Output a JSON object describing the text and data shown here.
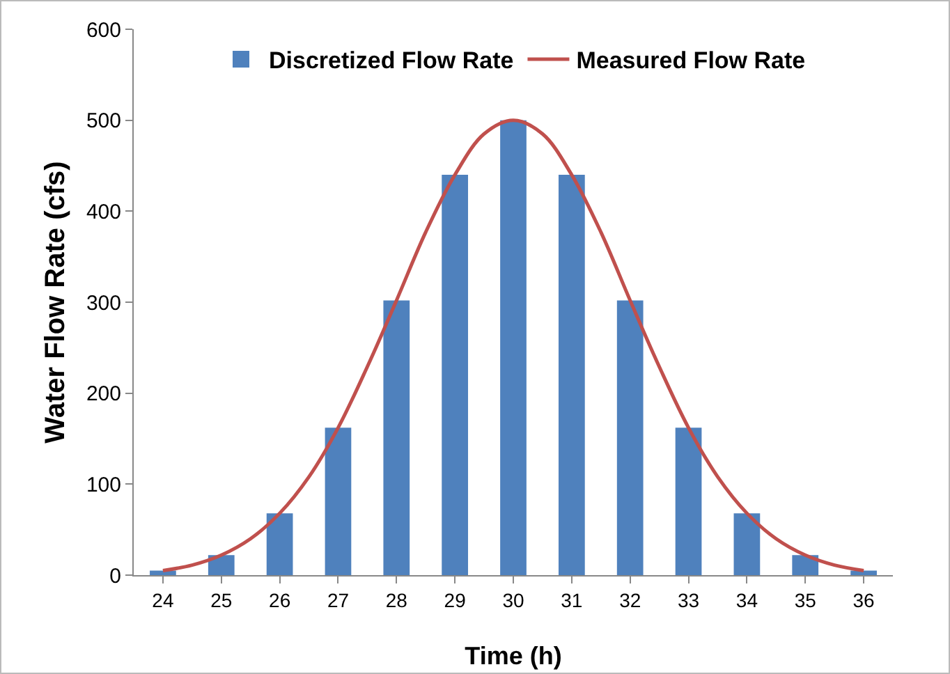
{
  "chart_data": {
    "type": "bar",
    "xlabel": "Time (h)",
    "ylabel": "Water Flow Rate (cfs)",
    "x": [
      24,
      25,
      26,
      27,
      28,
      29,
      30,
      31,
      32,
      33,
      34,
      35,
      36
    ],
    "xlim": [
      23.5,
      36.5
    ],
    "xticks": [
      24,
      25,
      26,
      27,
      28,
      29,
      30,
      31,
      32,
      33,
      34,
      35,
      36
    ],
    "ylim": [
      0,
      600
    ],
    "yticks": [
      0,
      100,
      200,
      300,
      400,
      500,
      600
    ],
    "grid": false,
    "legend": "top",
    "series": [
      {
        "name": "Discretized Flow Rate",
        "color": "#4f81bd",
        "values": [
          5,
          22,
          68,
          162,
          302,
          440,
          500,
          440,
          302,
          162,
          68,
          22,
          5
        ]
      },
      {
        "name": "Measured Flow Rate",
        "type": "line",
        "color": "#c0504d",
        "x": [
          24,
          24.5,
          25,
          25.5,
          26,
          26.5,
          27,
          27.5,
          28,
          28.5,
          29,
          29.5,
          30,
          30.5,
          31,
          31.5,
          32,
          32.5,
          33,
          33.5,
          34,
          34.5,
          35,
          35.5,
          36
        ],
        "values": [
          5,
          11,
          22,
          40,
          68,
          108,
          162,
          229,
          302,
          377,
          440,
          485,
          500,
          485,
          440,
          377,
          302,
          229,
          162,
          108,
          68,
          40,
          22,
          11,
          5
        ]
      }
    ]
  }
}
